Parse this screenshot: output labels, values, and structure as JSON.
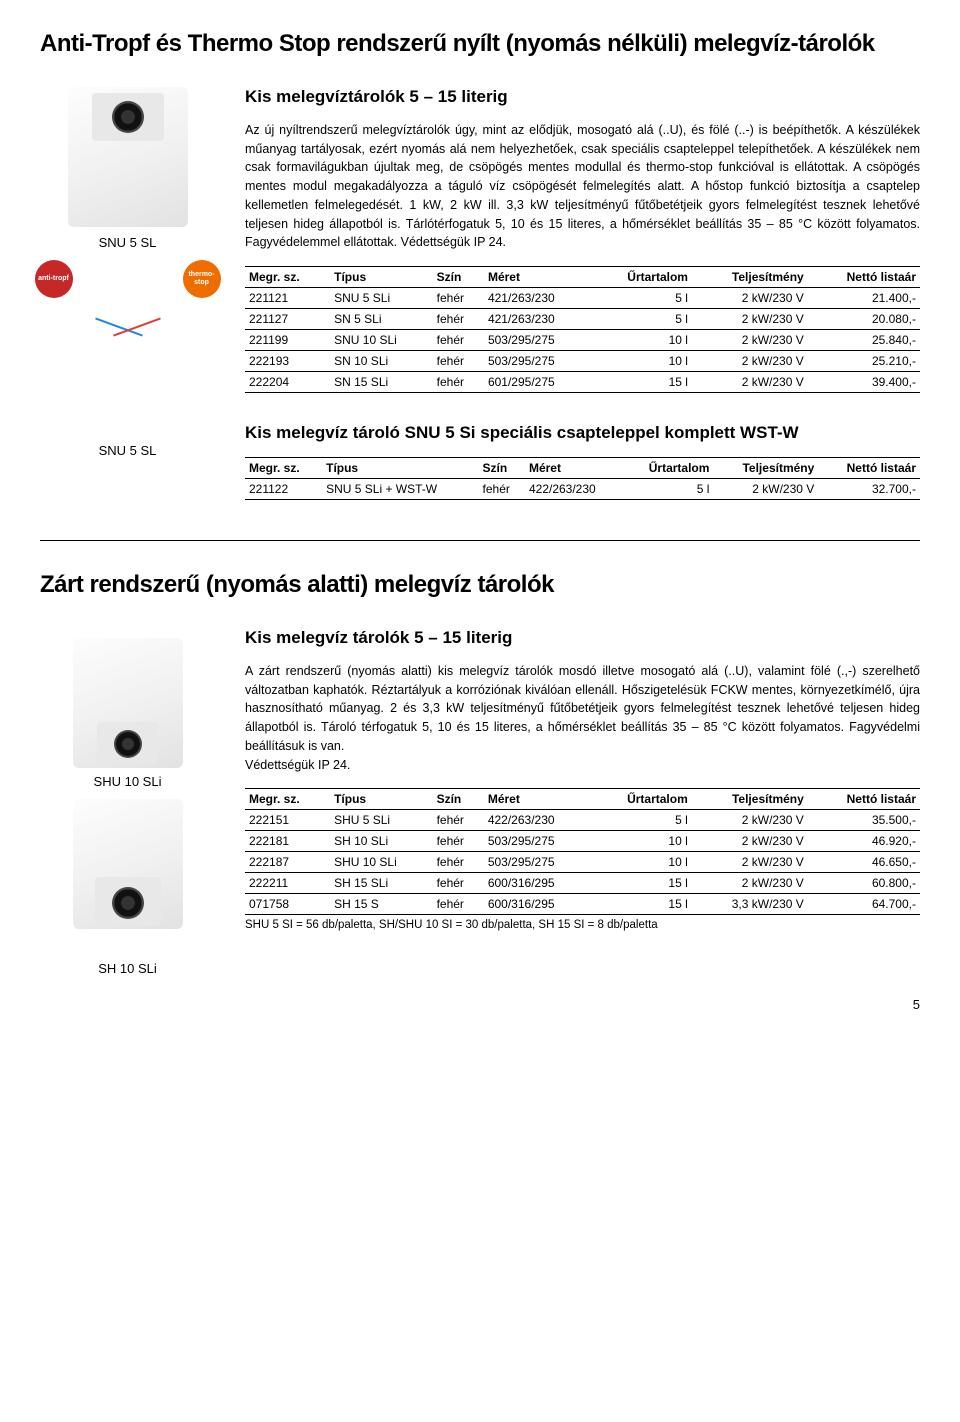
{
  "page_number": "5",
  "main_title": "Anti-Tropf és Thermo Stop rendszerű nyílt (nyomás nélküli) melegvíz-tárolók",
  "section1": {
    "caption1": "SNU 5 SL",
    "caption2": "SNU 5 SL",
    "anti_badge": "anti-tropf",
    "thermo_badge": "thermo-stop",
    "sub_title": "Kis melegvíztárolók 5 – 15 literig",
    "body": "Az új nyíltrendszerű melegvíztárolók úgy, mint az elődjük, mosogató alá (..U), és fölé (..-) is beépíthetők. A készülékek műanyag tartályosak, ezért nyomás alá nem helyezhetőek, csak speciális csapteleppel telepíthetőek. A készülékek nem csak formavilágukban újultak meg, de csöpögés mentes modullal és thermo-stop funkcióval is ellátottak. A csöpögés mentes modul megakadályozza a táguló víz csöpögését felmelegítés alatt. A hőstop funkció biztosítja a csaptelep kellemetlen felmelegedését. 1 kW, 2 kW ill. 3,3 kW teljesítményű fűtőbetétjeik gyors felmelegítést tesznek lehetővé teljesen hideg állapotból is. Tárlótérfogatuk 5, 10 és 15 literes, a hőmérséklet beállítás 35 – 85 °C között folyamatos. Fagyvédelemmel ellátottak. Védettségük IP 24.",
    "table_headers": [
      "Megr. sz.",
      "Típus",
      "Szín",
      "Méret",
      "Űrtartalom",
      "Teljesítmény",
      "Nettó listaár"
    ],
    "rows": [
      [
        "221121",
        "SNU 5 SLi",
        "fehér",
        "421/263/230",
        "5 l",
        "2 kW/230 V",
        "21.400,-"
      ],
      [
        "221127",
        "SN 5 SLi",
        "fehér",
        "421/263/230",
        "5 l",
        "2 kW/230 V",
        "20.080,-"
      ],
      [
        "221199",
        "SNU 10 SLi",
        "fehér",
        "503/295/275",
        "10 l",
        "2 kW/230 V",
        "25.840,-"
      ],
      [
        "222193",
        "SN 10 SLi",
        "fehér",
        "503/295/275",
        "10 l",
        "2 kW/230 V",
        "25.210,-"
      ],
      [
        "222204",
        "SN 15 SLi",
        "fehér",
        "601/295/275",
        "15 l",
        "2 kW/230 V",
        "39.400,-"
      ]
    ],
    "sub_title2": "Kis melegvíz tároló SNU 5 Si speciális csapteleppel komplett WST-W",
    "rows2": [
      [
        "221122",
        "SNU 5 SLi + WST-W",
        "fehér",
        "422/263/230",
        "5 l",
        "2 kW/230 V",
        "32.700,-"
      ]
    ]
  },
  "section2_title": "Zárt rendszerű (nyomás alatti) melegvíz tárolók",
  "section2": {
    "caption1": "SHU 10 SLi",
    "caption2": "SH 10 SLi",
    "sub_title": "Kis melegvíz tárolók 5 – 15 literig",
    "body": "A zárt rendszerű (nyomás alatti) kis melegvíz tárolók mosdó illetve mosogató alá (..U), valamint fölé (.,-) szerelhető változatban kaphatók. Réztartályuk a korróziónak kiválóan ellenáll. Hőszigetelésük FCKW mentes, környezetkímélő, újra hasznosítható műanyag. 2 és 3,3 kW teljesítményű fűtőbetétjeik gyors felmelegítést tesznek lehetővé teljesen hideg állapotból is. Tároló térfogatuk 5, 10 és 15 literes, a hőmérséklet beállítás 35 – 85 °C között folyamatos. Fagyvédelmi beállításuk is van.\nVédettségük IP 24.",
    "table_headers": [
      "Megr. sz.",
      "Típus",
      "Szín",
      "Méret",
      "Űrtartalom",
      "Teljesítmény",
      "Nettó listaár"
    ],
    "rows": [
      [
        "222151",
        "SHU 5 SLi",
        "fehér",
        "422/263/230",
        "5 l",
        "2 kW/230 V",
        "35.500,-"
      ],
      [
        "222181",
        "SH 10 SLi",
        "fehér",
        "503/295/275",
        "10 l",
        "2 kW/230 V",
        "46.920,-"
      ],
      [
        "222187",
        "SHU 10 SLi",
        "fehér",
        "503/295/275",
        "10 l",
        "2 kW/230 V",
        "46.650,-"
      ],
      [
        "222211",
        "SH 15 SLi",
        "fehér",
        "600/316/295",
        "15 l",
        "2 kW/230 V",
        "60.800,-"
      ],
      [
        "071758",
        "SH 15 S",
        "fehér",
        "600/316/295",
        "15 l",
        "3,3 kW/230 V",
        "64.700,-"
      ]
    ],
    "note": "SHU 5 SI = 56 db/paletta, SH/SHU 10 SI = 30 db/paletta, SH 15 SI = 8 db/paletta"
  }
}
